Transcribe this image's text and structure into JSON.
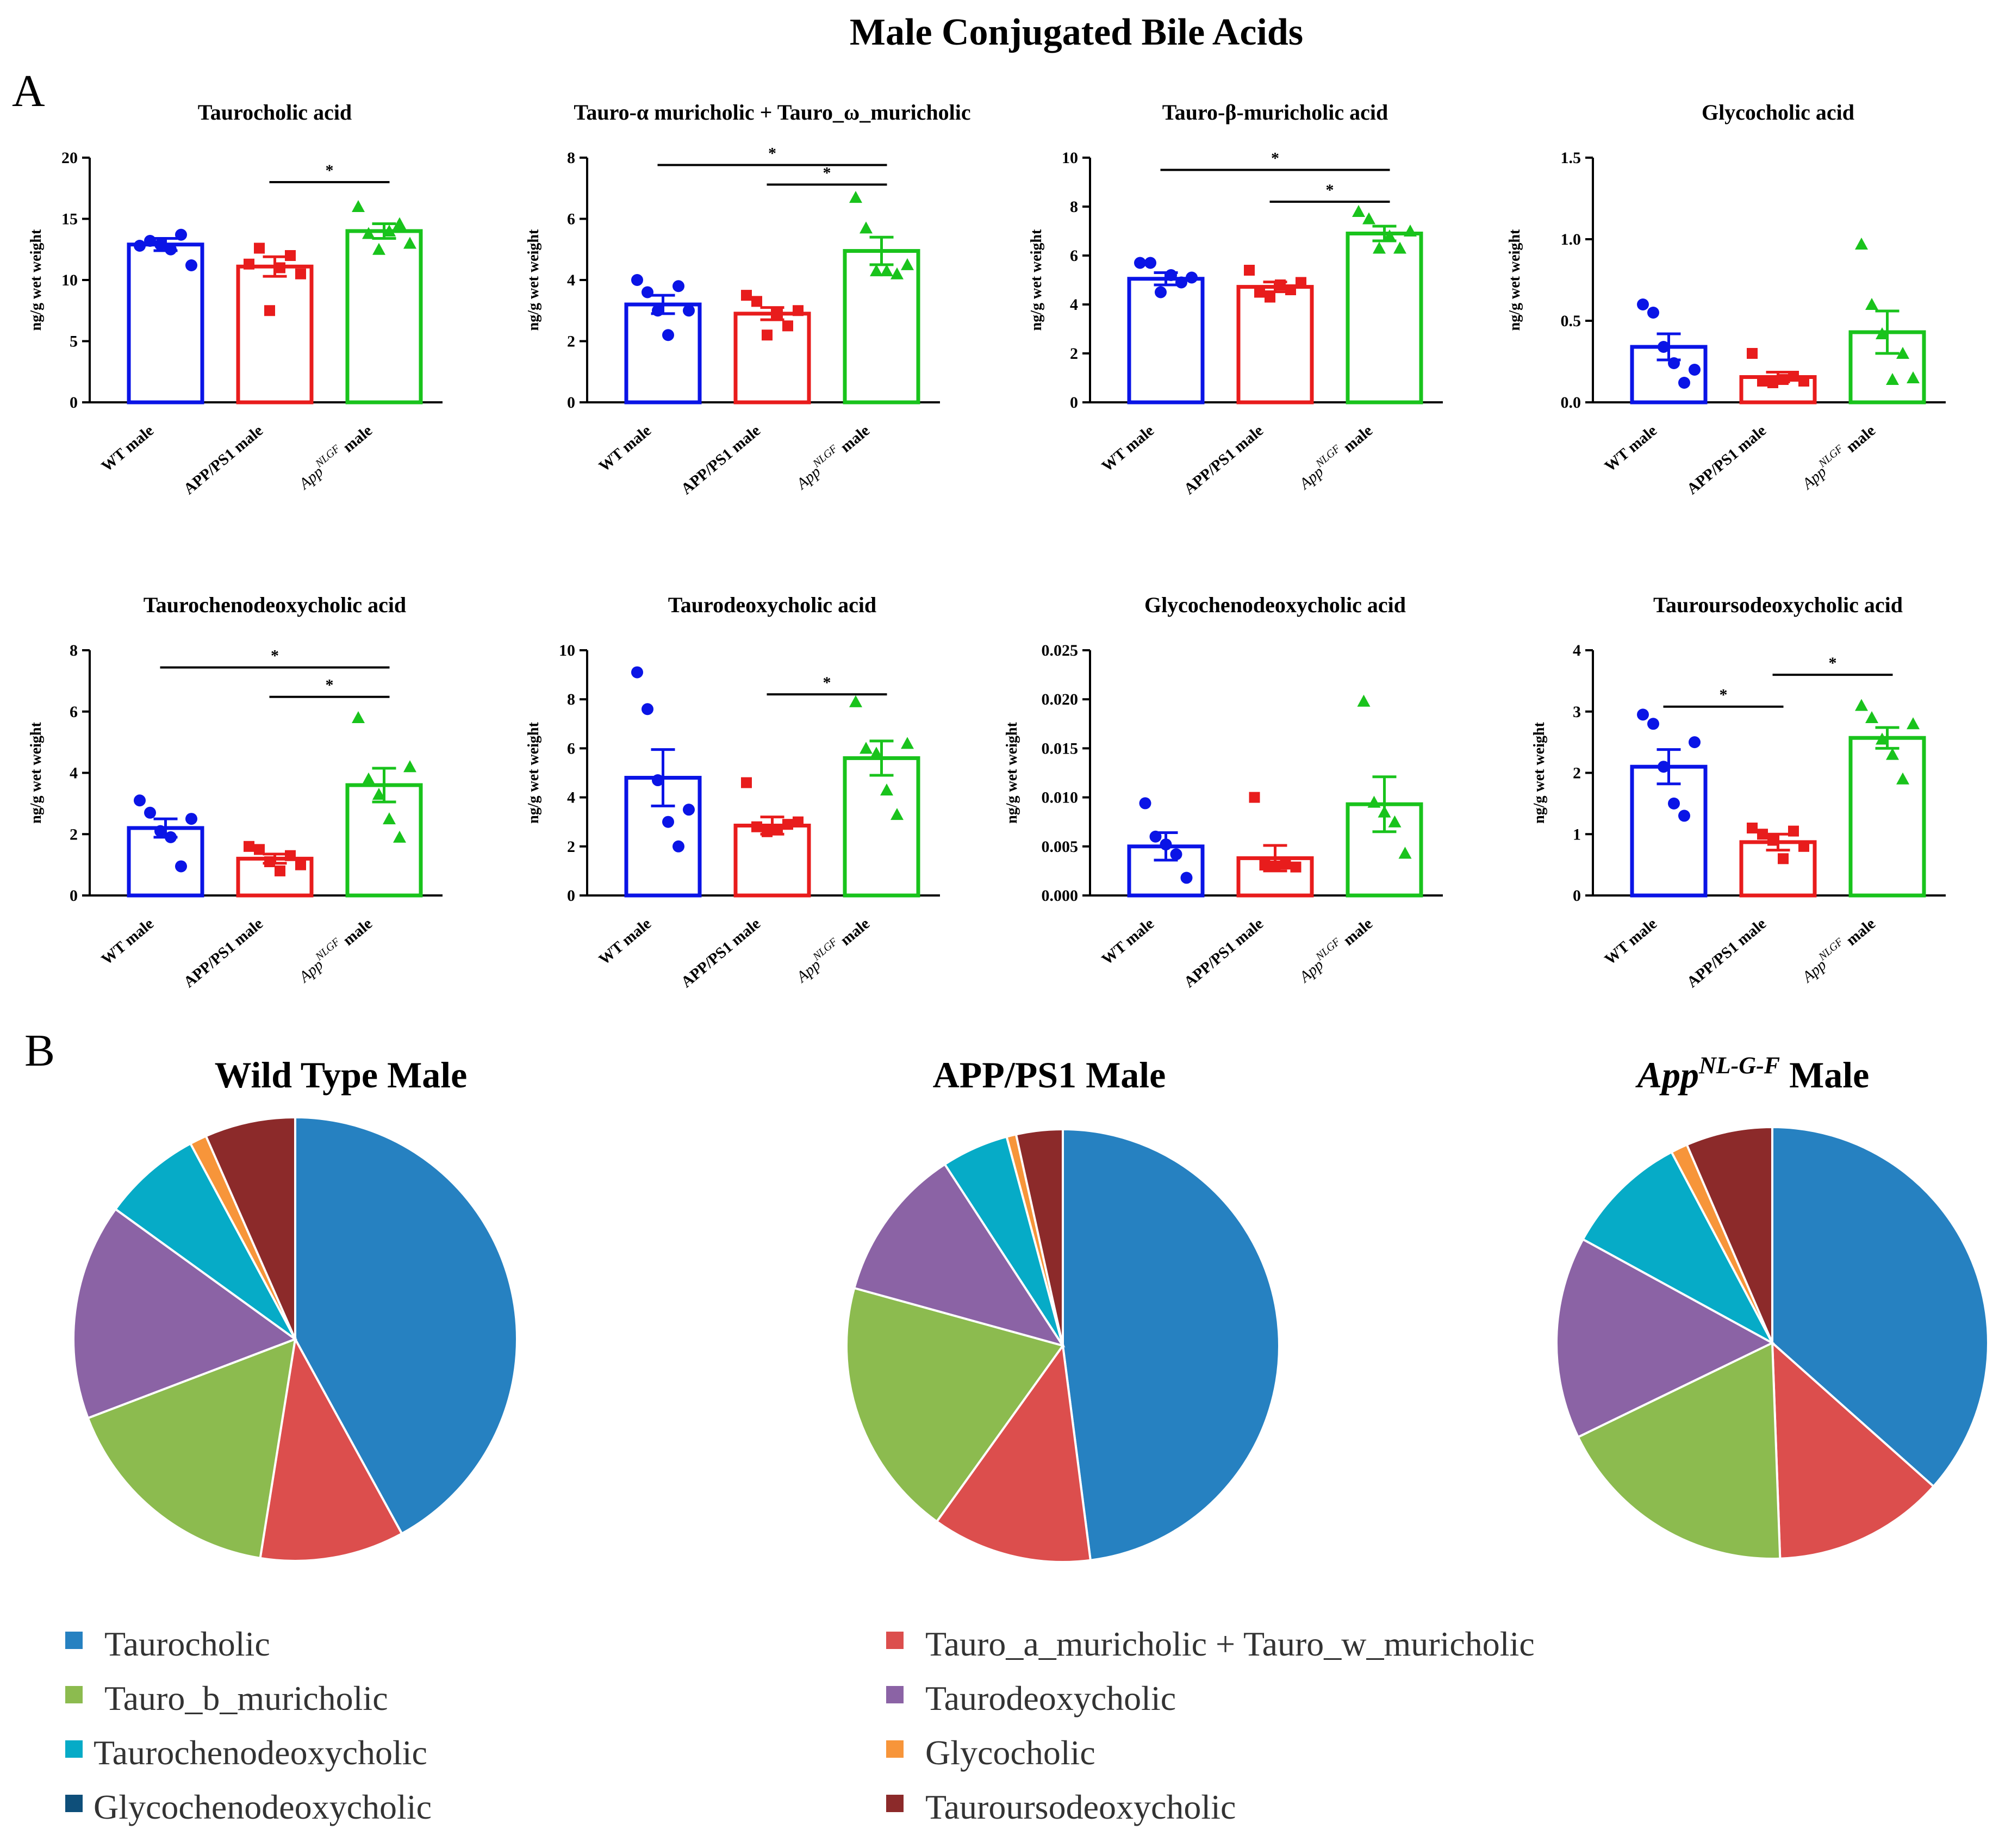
{
  "figure_title": "Male Conjugated Bile Acids",
  "panel_labels": {
    "a": "A",
    "b": "B"
  },
  "colors": {
    "wt": "#0a14e6",
    "apps1": "#e81c1c",
    "nlgf": "#19c31c"
  },
  "pie_colors": [
    "#2681c1",
    "#dc4e4d",
    "#8cbb4f",
    "#8b63a5",
    "#06abc7",
    "#f7953a",
    "#8c2a2a"
  ],
  "chart_data": [
    {
      "type": "bar",
      "title": "Taurocholic acid",
      "ylabel": "ng/g wet weight",
      "ylim": [
        0,
        20
      ],
      "yticks": [
        "0",
        "5",
        "10",
        "15",
        "20"
      ],
      "categories": [
        "WT male",
        "APP/PS1 male",
        "App^NLGF male"
      ],
      "cat_main": [
        "WT male",
        "APP/PS1 male",
        "App"
      ],
      "cat_sup": "NLGF",
      "cat_tail": "male",
      "values": [
        12.9,
        11.1,
        14.0
      ],
      "sem": [
        0.5,
        0.8,
        0.6
      ],
      "points": [
        [
          12.8,
          13.2,
          12.9,
          12.5,
          13.7,
          11.2
        ],
        [
          11.3,
          12.6,
          7.5,
          11.0,
          12.0,
          10.5
        ],
        [
          16.0,
          13.8,
          12.5,
          14.0,
          14.6,
          13.0
        ]
      ],
      "sig": [
        {
          "from": 1,
          "to": 2,
          "level": 0.9,
          "label": "*"
        }
      ]
    },
    {
      "type": "bar",
      "title": "Tauro-α muricholic + Tauro_ω_muricholic",
      "ylabel": "ng/g wet weight",
      "ylim": [
        0,
        8
      ],
      "yticks": [
        "0",
        "2",
        "4",
        "6",
        "8"
      ],
      "categories": [
        "WT male",
        "APP/PS1 male",
        "App^NLGF male"
      ],
      "cat_main": [
        "WT male",
        "APP/PS1 male",
        "App"
      ],
      "cat_sup": "NLGF",
      "cat_tail": "male",
      "values": [
        3.2,
        2.9,
        4.95
      ],
      "sem": [
        0.3,
        0.2,
        0.45
      ],
      "points": [
        [
          4.0,
          3.6,
          3.0,
          2.2,
          3.8,
          3.0
        ],
        [
          3.5,
          3.3,
          2.2,
          2.9,
          2.5,
          3.0
        ],
        [
          6.7,
          5.7,
          4.3,
          4.3,
          4.2,
          4.5
        ]
      ],
      "sig": [
        {
          "from": 0,
          "to": 2,
          "level": 0.97,
          "label": "*"
        },
        {
          "from": 1,
          "to": 2,
          "level": 0.89,
          "label": "*"
        }
      ]
    },
    {
      "type": "bar",
      "title": "Tauro-β-muricholic acid",
      "ylabel": "ng/g wet weight",
      "ylim": [
        0,
        10
      ],
      "yticks": [
        "0",
        "2",
        "4",
        "6",
        "8",
        "10"
      ],
      "categories": [
        "WT male",
        "APP/PS1 male",
        "App^NLGF male"
      ],
      "cat_main": [
        "WT male",
        "APP/PS1 male",
        "App"
      ],
      "cat_sup": "NLGF",
      "cat_tail": "male",
      "values": [
        5.05,
        4.72,
        6.9
      ],
      "sem": [
        0.25,
        0.2,
        0.3
      ],
      "points": [
        [
          5.7,
          5.7,
          4.5,
          5.2,
          4.9,
          5.1
        ],
        [
          5.4,
          4.5,
          4.3,
          4.8,
          4.6,
          4.9
        ],
        [
          7.8,
          7.5,
          6.3,
          6.8,
          6.3,
          7.0
        ]
      ],
      "sig": [
        {
          "from": 0,
          "to": 2,
          "level": 0.95,
          "label": "*"
        },
        {
          "from": 1,
          "to": 2,
          "level": 0.82,
          "label": "*"
        }
      ]
    },
    {
      "type": "bar",
      "title": "Glycocholic acid",
      "ylabel": "ng/g wet weight",
      "ylim": [
        0,
        1.5
      ],
      "yticks": [
        "0.0",
        "0.5",
        "1.0",
        "1.5"
      ],
      "categories": [
        "WT male",
        "APP/PS1 male",
        "App^NLGF male"
      ],
      "cat_main": [
        "WT male",
        "APP/PS1 male",
        "App"
      ],
      "cat_sup": "NLGF",
      "cat_tail": "male",
      "values": [
        0.34,
        0.155,
        0.43
      ],
      "sem": [
        0.08,
        0.03,
        0.13
      ],
      "points": [
        [
          0.6,
          0.55,
          0.34,
          0.24,
          0.12,
          0.2
        ],
        [
          0.3,
          0.13,
          0.12,
          0.14,
          0.16,
          0.13
        ],
        [
          0.97,
          0.6,
          0.42,
          0.14,
          0.3,
          0.15
        ]
      ],
      "sig": []
    },
    {
      "type": "bar",
      "title": "Taurochenodeoxycholic acid",
      "ylabel": "ng/g wet weight",
      "ylim": [
        0,
        8
      ],
      "yticks": [
        "0",
        "2",
        "4",
        "6",
        "8"
      ],
      "categories": [
        "WT male",
        "APP/PS1 male",
        "App^NLGF male"
      ],
      "cat_main": [
        "WT male",
        "APP/PS1 male",
        "App"
      ],
      "cat_sup": "NLGF",
      "cat_tail": "male",
      "values": [
        2.2,
        1.2,
        3.6
      ],
      "sem": [
        0.3,
        0.15,
        0.55
      ],
      "points": [
        [
          3.1,
          2.7,
          2.1,
          1.9,
          0.95,
          2.5
        ],
        [
          1.6,
          1.5,
          1.1,
          0.8,
          1.3,
          1.0
        ],
        [
          5.8,
          3.8,
          3.3,
          2.5,
          1.9,
          4.2
        ]
      ],
      "sig": [
        {
          "from": 0,
          "to": 2,
          "level": 0.93,
          "label": "*"
        },
        {
          "from": 1,
          "to": 2,
          "level": 0.81,
          "label": "*"
        }
      ]
    },
    {
      "type": "bar",
      "title": "Taurodeoxycholic acid",
      "ylabel": "ng/g wet weight",
      "ylim": [
        0,
        10
      ],
      "yticks": [
        "0",
        "2",
        "4",
        "6",
        "8",
        "10"
      ],
      "categories": [
        "WT male",
        "APP/PS1 male",
        "App^NLGF male"
      ],
      "cat_main": [
        "WT male",
        "APP/PS1 male",
        "App"
      ],
      "cat_sup": "NLGF",
      "cat_tail": "male",
      "values": [
        4.8,
        2.85,
        5.6
      ],
      "sem": [
        1.15,
        0.35,
        0.7
      ],
      "points": [
        [
          9.1,
          7.6,
          4.7,
          3.0,
          2.0,
          3.5
        ],
        [
          4.6,
          2.8,
          2.6,
          2.7,
          2.9,
          3.0
        ],
        [
          7.9,
          6.0,
          5.8,
          4.3,
          3.3,
          6.2
        ]
      ],
      "sig": [
        {
          "from": 1,
          "to": 2,
          "level": 0.82,
          "label": "*"
        }
      ]
    },
    {
      "type": "bar",
      "title": "Glycochenodeoxycholic acid",
      "ylabel": "ng/g wet weight",
      "ylim": [
        0,
        0.025
      ],
      "yticks": [
        "0.000",
        "0.005",
        "0.010",
        "0.015",
        "0.020",
        "0.025"
      ],
      "categories": [
        "WT male",
        "APP/PS1 male",
        "App^NLGF male"
      ],
      "cat_main": [
        "WT male",
        "APP/PS1 male",
        "App"
      ],
      "cat_sup": "NLGF",
      "cat_tail": "male",
      "values": [
        0.005,
        0.0038,
        0.0093
      ],
      "sem": [
        0.0014,
        0.0013,
        0.0028
      ],
      "points": [
        [
          0.0094,
          0.006,
          0.0052,
          0.0042,
          0.0018
        ],
        [
          0.01,
          0.0031,
          0.003,
          0.0032,
          0.0029
        ],
        [
          0.0198,
          0.0095,
          0.0085,
          0.0075,
          0.0043
        ]
      ],
      "sig": []
    },
    {
      "type": "bar",
      "title": "Tauroursodeoxycholic acid",
      "ylabel": "ng/g wet weight",
      "ylim": [
        0,
        4
      ],
      "yticks": [
        "0",
        "1",
        "2",
        "3",
        "4"
      ],
      "categories": [
        "WT male",
        "APP/PS1 male",
        "App^NLGF male"
      ],
      "cat_main": [
        "WT male",
        "APP/PS1 male",
        "App"
      ],
      "cat_sup": "NLGF",
      "cat_tail": "male",
      "values": [
        2.1,
        0.87,
        2.57
      ],
      "sem": [
        0.28,
        0.13,
        0.17
      ],
      "points": [
        [
          2.95,
          2.8,
          2.1,
          1.5,
          1.3,
          2.5
        ],
        [
          1.1,
          1.0,
          0.9,
          0.6,
          1.05,
          0.8
        ],
        [
          3.1,
          2.9,
          2.55,
          2.3,
          1.9,
          2.8
        ]
      ],
      "sig": [
        {
          "from": 0,
          "to": 1,
          "level": 0.77,
          "label": "*"
        },
        {
          "from": 1,
          "to": 2,
          "level": 0.9,
          "label": "*"
        }
      ]
    },
    {
      "type": "pie",
      "title": "Wild Type Male",
      "labels": [
        "Taurocholic",
        "Tauro_a_muricholic + Tauro_w_muricholic",
        "Tauro_b_muricholic",
        "Taurodeoxycholic",
        "Taurochenodeoxycholic",
        "Glycocholic",
        "Tauroursodeoxycholic"
      ],
      "values": [
        40.8,
        10.2,
        16.2,
        15.3,
        7.0,
        1.2,
        6.4
      ]
    },
    {
      "type": "pie",
      "title": "APP/PS1 Male",
      "labels": [
        "Taurocholic",
        "Tauro_a_muricholic + Tauro_w_muricholic",
        "Tauro_b_muricholic",
        "Taurodeoxycholic",
        "Taurochenodeoxycholic",
        "Glycocholic",
        "Tauroursodeoxycholic"
      ],
      "values": [
        47.0,
        11.7,
        19.0,
        11.3,
        4.9,
        0.7,
        3.4
      ]
    },
    {
      "type": "pie",
      "title": "App",
      "title_sup": "NL-G-F",
      "title_tail": " Male",
      "labels": [
        "Taurocholic",
        "Tauro_a_muricholic + Tauro_w_muricholic",
        "Tauro_b_muricholic",
        "Taurodeoxycholic",
        "Taurochenodeoxycholic",
        "Glycocholic",
        "Tauroursodeoxycholic"
      ],
      "values": [
        35.0,
        12.3,
        17.6,
        14.5,
        8.9,
        1.2,
        6.2
      ]
    }
  ],
  "legend": {
    "items": [
      {
        "label": "Taurocholic",
        "color": "#2681c1"
      },
      {
        "label": "Tauro_a_muricholic + Tauro_w_muricholic",
        "color": "#dc4e4d"
      },
      {
        "label": "Tauro_b_muricholic",
        "color": "#8cbb4f"
      },
      {
        "label": "Taurodeoxycholic",
        "color": "#8b63a5"
      },
      {
        "label": "Taurochenodeoxycholic",
        "color": "#06abc7"
      },
      {
        "label": "Glycocholic",
        "color": "#f7953a"
      },
      {
        "label": "Glycochenodeoxycholic",
        "color": "#0e4f7a"
      },
      {
        "label": "Tauroursodeoxycholic",
        "color": "#8c2a2a"
      }
    ]
  }
}
